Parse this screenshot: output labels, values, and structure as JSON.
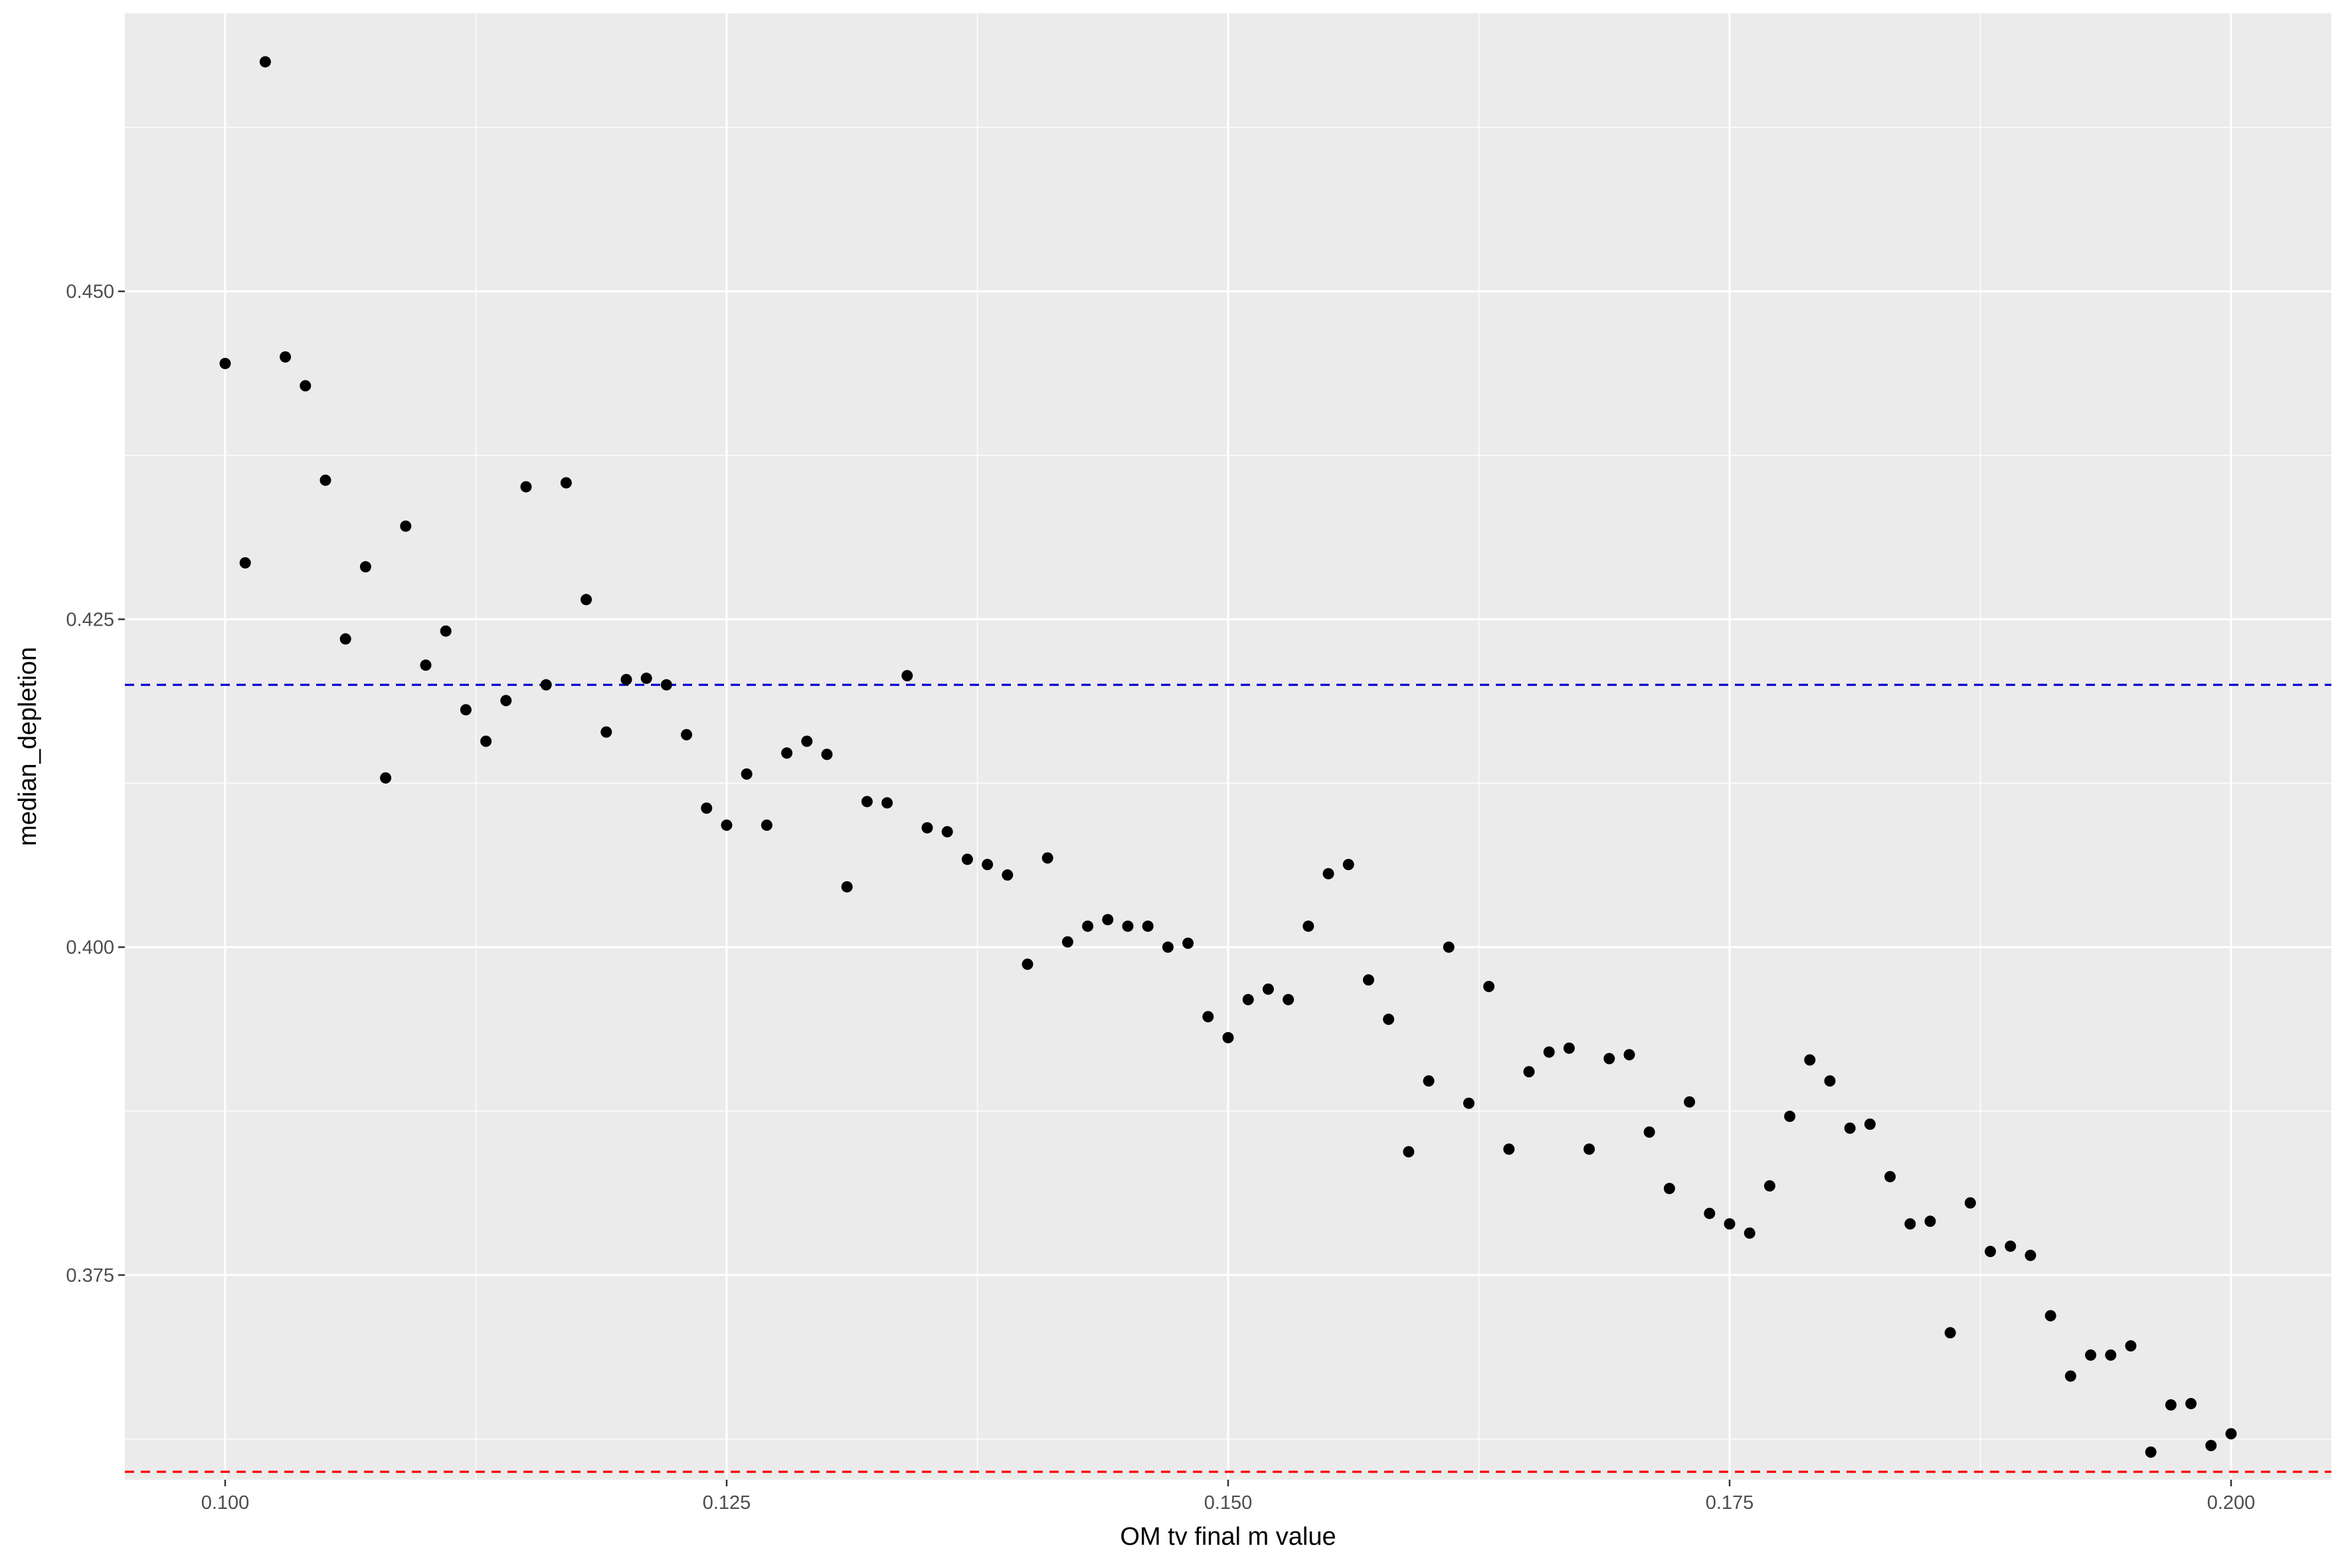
{
  "chart_data": {
    "type": "scatter",
    "title": "",
    "xlabel": "OM tv final m value",
    "ylabel": "median_depletion",
    "xlim": [
      0.095,
      0.205
    ],
    "ylim": [
      0.3594,
      0.4712
    ],
    "x_ticks": [
      0.1,
      0.125,
      0.15,
      0.175,
      0.2
    ],
    "x_tick_labels": [
      "0.100",
      "0.125",
      "0.150",
      "0.175",
      "0.200"
    ],
    "y_ticks": [
      0.375,
      0.4,
      0.425,
      0.45
    ],
    "y_tick_labels": [
      "0.375",
      "0.400",
      "0.425",
      "0.450"
    ],
    "grid": true,
    "colors": {
      "panel_background": "#ebebeb",
      "grid": "#ffffff",
      "points": "#000000",
      "hline_blue": "#0000cd",
      "hline_red": "#ff0000"
    },
    "hlines": [
      {
        "name": "blue-dashed-reference-line",
        "y": 0.42,
        "color": "#0000cd",
        "style": "dashed"
      },
      {
        "name": "red-dashed-reference-line",
        "y": 0.36,
        "color": "#ff0000",
        "style": "dashed"
      }
    ],
    "series": [
      {
        "name": "median_depletion",
        "x": [
          0.1,
          0.101,
          0.102,
          0.103,
          0.104,
          0.105,
          0.106,
          0.107,
          0.108,
          0.109,
          0.11,
          0.111,
          0.112,
          0.113,
          0.114,
          0.115,
          0.116,
          0.117,
          0.118,
          0.119,
          0.12,
          0.121,
          0.122,
          0.123,
          0.124,
          0.125,
          0.126,
          0.127,
          0.128,
          0.129,
          0.13,
          0.131,
          0.132,
          0.133,
          0.134,
          0.135,
          0.136,
          0.137,
          0.138,
          0.139,
          0.14,
          0.141,
          0.142,
          0.143,
          0.144,
          0.145,
          0.146,
          0.147,
          0.148,
          0.149,
          0.15,
          0.151,
          0.152,
          0.153,
          0.154,
          0.155,
          0.156,
          0.157,
          0.158,
          0.159,
          0.16,
          0.161,
          0.162,
          0.163,
          0.164,
          0.165,
          0.166,
          0.167,
          0.168,
          0.169,
          0.17,
          0.171,
          0.172,
          0.173,
          0.174,
          0.175,
          0.176,
          0.177,
          0.178,
          0.179,
          0.18,
          0.181,
          0.182,
          0.183,
          0.184,
          0.185,
          0.186,
          0.187,
          0.188,
          0.189,
          0.19,
          0.191,
          0.192,
          0.193,
          0.194,
          0.195,
          0.196,
          0.197,
          0.198,
          0.199,
          0.2
        ],
        "y": [
          0.4445,
          0.4293,
          0.4675,
          0.445,
          0.4428,
          0.4356,
          0.4235,
          0.429,
          0.4129,
          0.4321,
          0.4215,
          0.4241,
          0.4181,
          0.4157,
          0.4188,
          0.4351,
          0.42,
          0.4354,
          0.4265,
          0.4164,
          0.4204,
          0.4205,
          0.42,
          0.4162,
          0.4106,
          0.4093,
          0.4132,
          0.4093,
          0.4148,
          0.4157,
          0.4147,
          0.4046,
          0.4111,
          0.411,
          0.4207,
          0.4091,
          0.4088,
          0.4067,
          0.4063,
          0.4055,
          0.3987,
          0.4068,
          0.4004,
          0.4016,
          0.4021,
          0.4016,
          0.4016,
          0.4,
          0.4003,
          0.3947,
          0.3931,
          0.396,
          0.3968,
          0.396,
          0.4016,
          0.4056,
          0.4063,
          0.3975,
          0.3945,
          0.3844,
          0.3898,
          0.4,
          0.3881,
          0.397,
          0.3846,
          0.3905,
          0.392,
          0.3923,
          0.3846,
          0.3915,
          0.3918,
          0.3859,
          0.3816,
          0.3882,
          0.3797,
          0.3789,
          0.3782,
          0.3818,
          0.3871,
          0.3914,
          0.3898,
          0.3862,
          0.3865,
          0.3825,
          0.3789,
          0.3791,
          0.3706,
          0.3805,
          0.3768,
          0.3772,
          0.3765,
          0.3719,
          0.3673,
          0.3689,
          0.3689,
          0.3696,
          0.3615,
          0.3651,
          0.3652,
          0.362,
          0.3629
        ]
      }
    ]
  }
}
